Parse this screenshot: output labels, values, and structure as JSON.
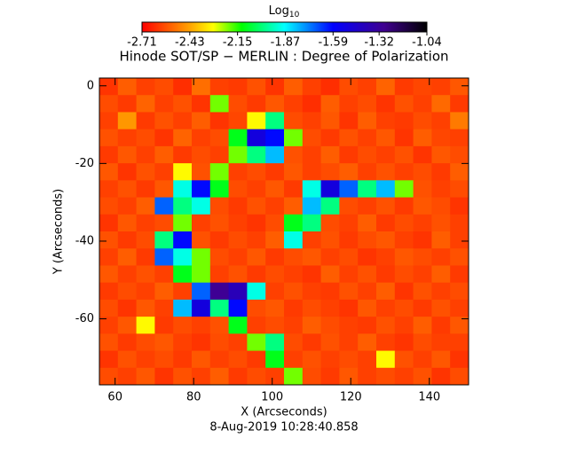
{
  "chart_data": {
    "type": "heatmap",
    "title": "Hinode SOT/SP − MERLIN : Degree of Polarization",
    "colorbar_title": "Log",
    "colorbar_title_sub": "10",
    "x_label": "X (Arcseconds)",
    "y_label": "Y (Arcseconds)",
    "footer": "8-Aug-2019 10:28:40.858",
    "xlim": [
      56,
      150
    ],
    "ylim": [
      -77,
      2
    ],
    "xticks": [
      60,
      80,
      100,
      120,
      140
    ],
    "yticks": [
      0,
      -20,
      -40,
      -60
    ],
    "clim": [
      -2.71,
      -1.04
    ],
    "cticks": [
      -2.71,
      -2.43,
      -2.15,
      -1.87,
      -1.59,
      -1.32,
      -1.04
    ],
    "z": [
      [
        -2.62,
        -2.55,
        -2.6,
        -2.58,
        -2.63,
        -2.52,
        -2.6,
        -2.61,
        -2.57,
        -2.62,
        -2.55,
        -2.6,
        -2.63,
        -2.58,
        -2.6,
        -2.54,
        -2.61,
        -2.59,
        -2.6,
        -2.56
      ],
      [
        -2.58,
        -2.61,
        -2.54,
        -2.6,
        -2.57,
        -2.62,
        -2.2,
        -2.58,
        -2.61,
        -2.56,
        -2.6,
        -2.63,
        -2.55,
        -2.6,
        -2.58,
        -2.62,
        -2.57,
        -2.6,
        -2.53,
        -2.61
      ],
      [
        -2.6,
        -2.45,
        -2.61,
        -2.57,
        -2.6,
        -2.55,
        -2.62,
        -2.59,
        -2.3,
        -2.0,
        -2.58,
        -2.6,
        -2.56,
        -2.62,
        -2.55,
        -2.6,
        -2.61,
        -2.58,
        -2.6,
        -2.5
      ],
      [
        -2.57,
        -2.6,
        -2.58,
        -2.62,
        -2.54,
        -2.6,
        -2.58,
        -2.1,
        -1.5,
        -1.6,
        -2.2,
        -2.58,
        -2.61,
        -2.57,
        -2.6,
        -2.56,
        -2.62,
        -2.55,
        -2.59,
        -2.6
      ],
      [
        -2.61,
        -2.56,
        -2.6,
        -2.55,
        -2.61,
        -2.58,
        -2.6,
        -2.2,
        -2.0,
        -1.8,
        -2.57,
        -2.6,
        -2.55,
        -2.61,
        -2.58,
        -2.6,
        -2.57,
        -2.62,
        -2.56,
        -2.58
      ],
      [
        -2.56,
        -2.62,
        -2.57,
        -2.6,
        -2.3,
        -2.57,
        -2.2,
        -2.6,
        -2.58,
        -2.61,
        -2.56,
        -2.6,
        -2.58,
        -2.55,
        -2.6,
        -2.57,
        -2.6,
        -2.58,
        -2.61,
        -2.55
      ],
      [
        -2.6,
        -2.57,
        -2.61,
        -2.56,
        -1.9,
        -1.6,
        -2.1,
        -2.58,
        -2.6,
        -2.56,
        -2.61,
        -1.9,
        -1.5,
        -1.7,
        -2.0,
        -1.8,
        -2.2,
        -2.57,
        -2.6,
        -2.58
      ],
      [
        -2.58,
        -2.6,
        -2.55,
        -1.7,
        -2.0,
        -1.9,
        -2.58,
        -2.61,
        -2.57,
        -2.6,
        -2.55,
        -1.8,
        -2.0,
        -2.58,
        -2.6,
        -2.57,
        -2.61,
        -2.56,
        -2.58,
        -2.62
      ],
      [
        -2.62,
        -2.56,
        -2.6,
        -2.58,
        -2.2,
        -2.6,
        -2.57,
        -2.6,
        -2.62,
        -2.58,
        -2.1,
        -2.0,
        -2.58,
        -2.6,
        -2.55,
        -2.61,
        -2.58,
        -2.6,
        -2.57,
        -2.6
      ],
      [
        -2.57,
        -2.61,
        -2.58,
        -2.0,
        -1.6,
        -2.57,
        -2.61,
        -2.58,
        -2.6,
        -2.55,
        -1.9,
        -2.6,
        -2.57,
        -2.61,
        -2.58,
        -2.56,
        -2.6,
        -2.62,
        -2.55,
        -2.6
      ],
      [
        -2.6,
        -2.55,
        -2.61,
        -1.7,
        -1.9,
        -2.2,
        -2.58,
        -2.6,
        -2.56,
        -2.61,
        -2.58,
        -2.56,
        -2.6,
        -2.58,
        -2.62,
        -2.6,
        -2.56,
        -2.58,
        -2.6,
        -2.57
      ],
      [
        -2.56,
        -2.6,
        -2.57,
        -2.6,
        -2.1,
        -2.2,
        -2.6,
        -2.57,
        -2.61,
        -2.58,
        -2.6,
        -2.62,
        -2.55,
        -2.6,
        -2.57,
        -2.61,
        -2.58,
        -2.6,
        -2.55,
        -2.61
      ],
      [
        -2.61,
        -2.58,
        -2.6,
        -2.55,
        -2.6,
        -1.7,
        -1.3,
        -1.4,
        -1.9,
        -2.6,
        -2.57,
        -2.6,
        -2.61,
        -2.57,
        -2.6,
        -2.55,
        -2.62,
        -2.57,
        -2.6,
        -2.58
      ],
      [
        -2.58,
        -2.62,
        -2.56,
        -2.6,
        -1.8,
        -1.5,
        -2.0,
        -1.6,
        -2.58,
        -2.56,
        -2.61,
        -2.58,
        -2.6,
        -2.62,
        -2.56,
        -2.6,
        -2.58,
        -2.61,
        -2.57,
        -2.6
      ],
      [
        -2.6,
        -2.56,
        -2.3,
        -2.61,
        -2.58,
        -2.6,
        -2.57,
        -2.1,
        -2.6,
        -2.58,
        -2.6,
        -2.55,
        -2.58,
        -2.6,
        -2.61,
        -2.57,
        -2.6,
        -2.55,
        -2.61,
        -2.56
      ],
      [
        -2.57,
        -2.61,
        -2.58,
        -2.56,
        -2.6,
        -2.62,
        -2.58,
        -2.6,
        -2.2,
        -2.0,
        -2.58,
        -2.61,
        -2.57,
        -2.6,
        -2.55,
        -2.6,
        -2.62,
        -2.58,
        -2.6,
        -2.6
      ],
      [
        -2.62,
        -2.57,
        -2.6,
        -2.58,
        -2.61,
        -2.56,
        -2.6,
        -2.58,
        -2.61,
        -2.1,
        -2.6,
        -2.57,
        -2.6,
        -2.58,
        -2.6,
        -2.3,
        -2.57,
        -2.6,
        -2.56,
        -2.62
      ],
      [
        -2.58,
        -2.6,
        -2.56,
        -2.62,
        -2.57,
        -2.6,
        -2.55,
        -2.61,
        -2.58,
        -2.6,
        -2.2,
        -2.58,
        -2.61,
        -2.56,
        -2.6,
        -2.58,
        -2.6,
        -2.57,
        -2.62,
        -2.58
      ]
    ]
  }
}
